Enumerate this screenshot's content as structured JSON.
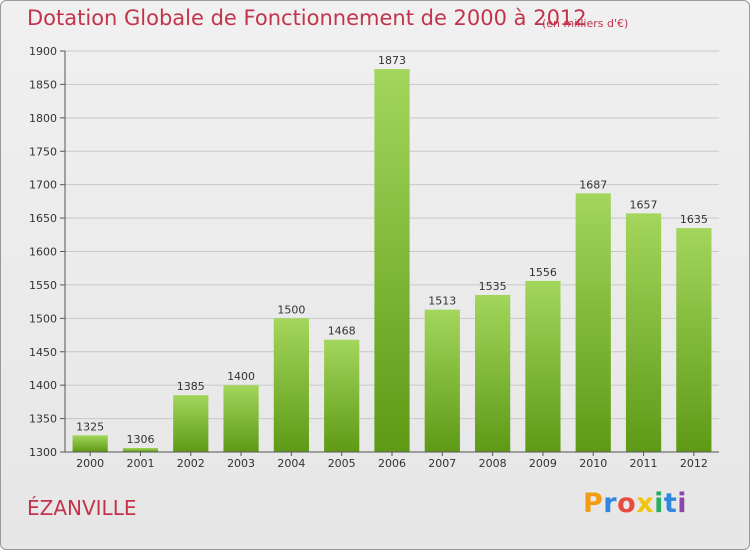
{
  "chart_data": {
    "type": "bar",
    "title": "Dotation Globale de Fonctionnement de 2000 à 2012",
    "subtitle": "(en milliers d'€)",
    "categories": [
      "2000",
      "2001",
      "2002",
      "2003",
      "2004",
      "2005",
      "2006",
      "2007",
      "2008",
      "2009",
      "2010",
      "2011",
      "2012"
    ],
    "values": [
      1325,
      1306,
      1385,
      1400,
      1500,
      1468,
      1873,
      1513,
      1535,
      1556,
      1687,
      1657,
      1635
    ],
    "ylim": [
      1300,
      1900
    ],
    "yticks": [
      1300,
      1350,
      1400,
      1450,
      1500,
      1550,
      1600,
      1650,
      1700,
      1750,
      1800,
      1850,
      1900
    ],
    "grid": true,
    "bar_color_top": "#a3d65c",
    "bar_color_bottom": "#5e9a16"
  },
  "commune": "ÉZANVILLE",
  "logo": {
    "letters": [
      "P",
      "r",
      "o",
      "x",
      "i",
      "t",
      "i"
    ],
    "colors": [
      "#f39c12",
      "#2e86de",
      "#e74c3c",
      "#f1c40f",
      "#27ae60",
      "#2e86de",
      "#8e44ad"
    ]
  },
  "colors": {
    "text_accent": "#c3344a",
    "grid": "#c8c8c8"
  }
}
